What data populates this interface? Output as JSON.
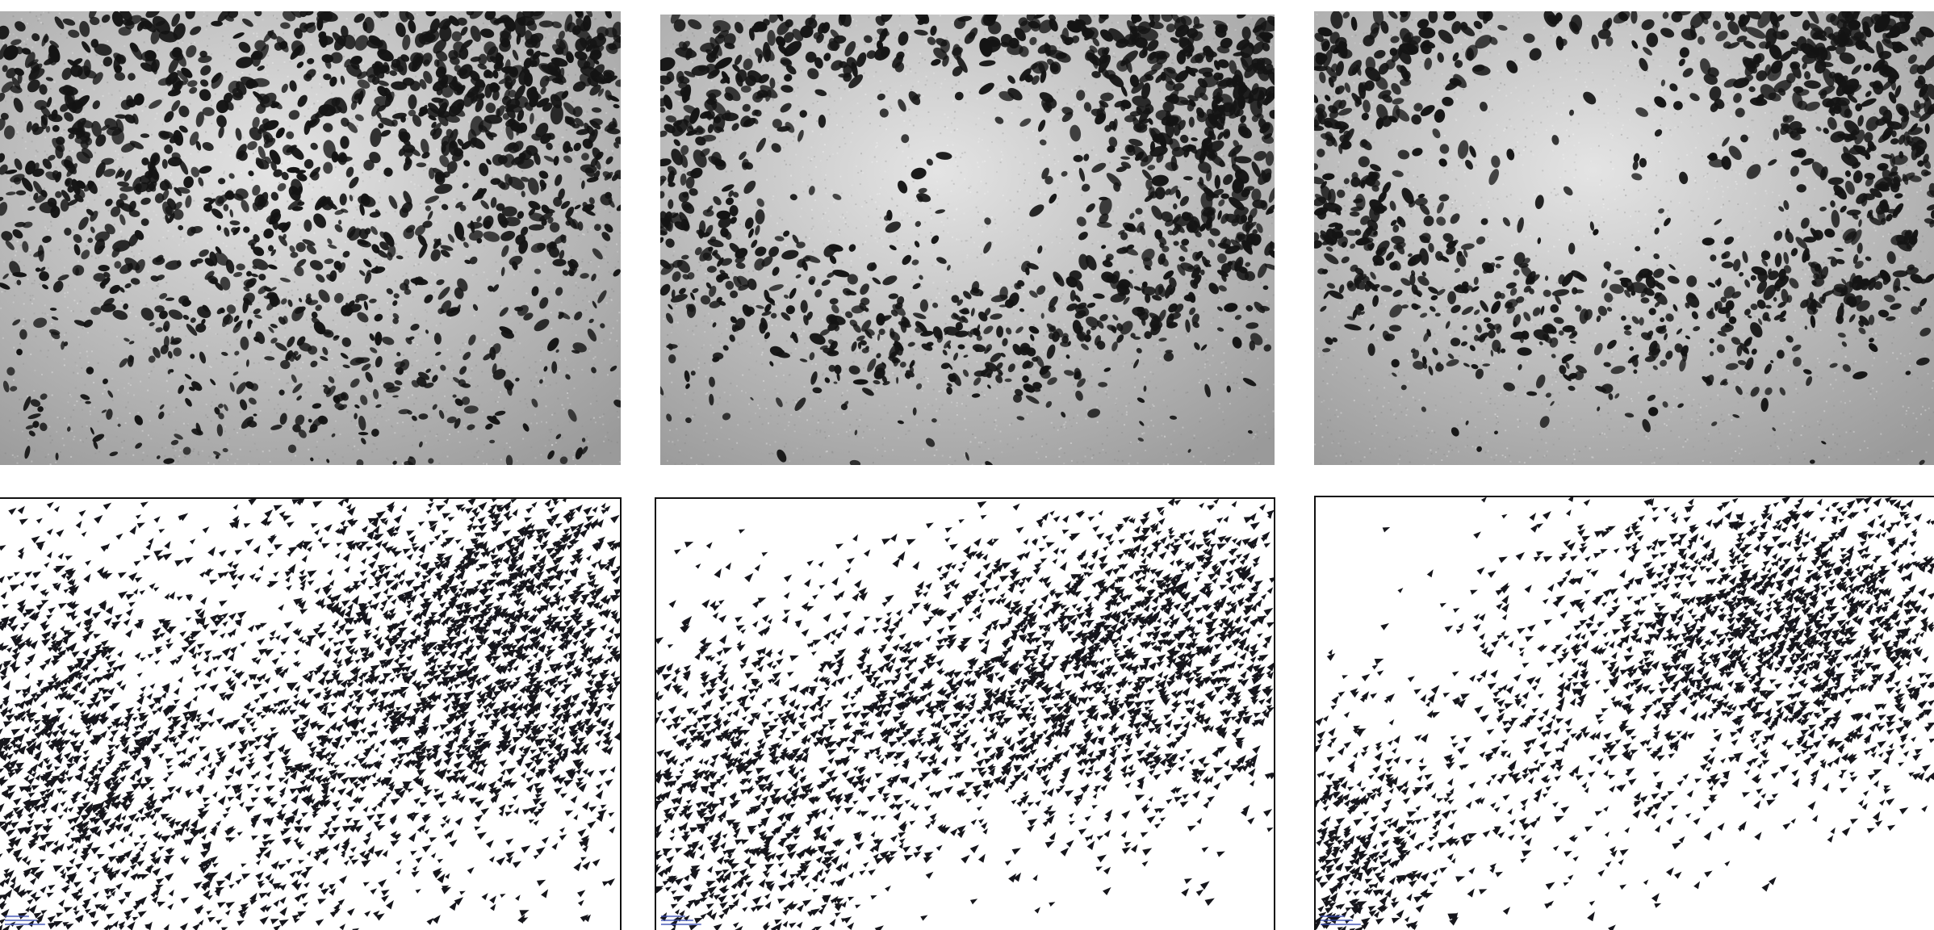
{
  "figure": {
    "photos": [
      {
        "name": "photo-panel-1",
        "flock": "dense-upper-right"
      },
      {
        "name": "photo-panel-2",
        "flock": "ring-around-center"
      },
      {
        "name": "photo-panel-3",
        "flock": "v-shape-sparse-center"
      }
    ],
    "simulations": [
      {
        "name": "simulation-panel-1",
        "flock": "dense-left-and-upper-right"
      },
      {
        "name": "simulation-panel-2",
        "flock": "band-left-to-upper-right"
      },
      {
        "name": "simulation-panel-3",
        "flock": "lower-left-and-upper-right"
      }
    ],
    "colors": {
      "photo_bird": "#141414",
      "photo_sky_light": "#e4e4e4",
      "photo_sky_dark": "#9a9a9a",
      "sim_agent": "#16161c",
      "sim_background": "#ffffff",
      "sim_label": "#3a4fb0"
    }
  }
}
